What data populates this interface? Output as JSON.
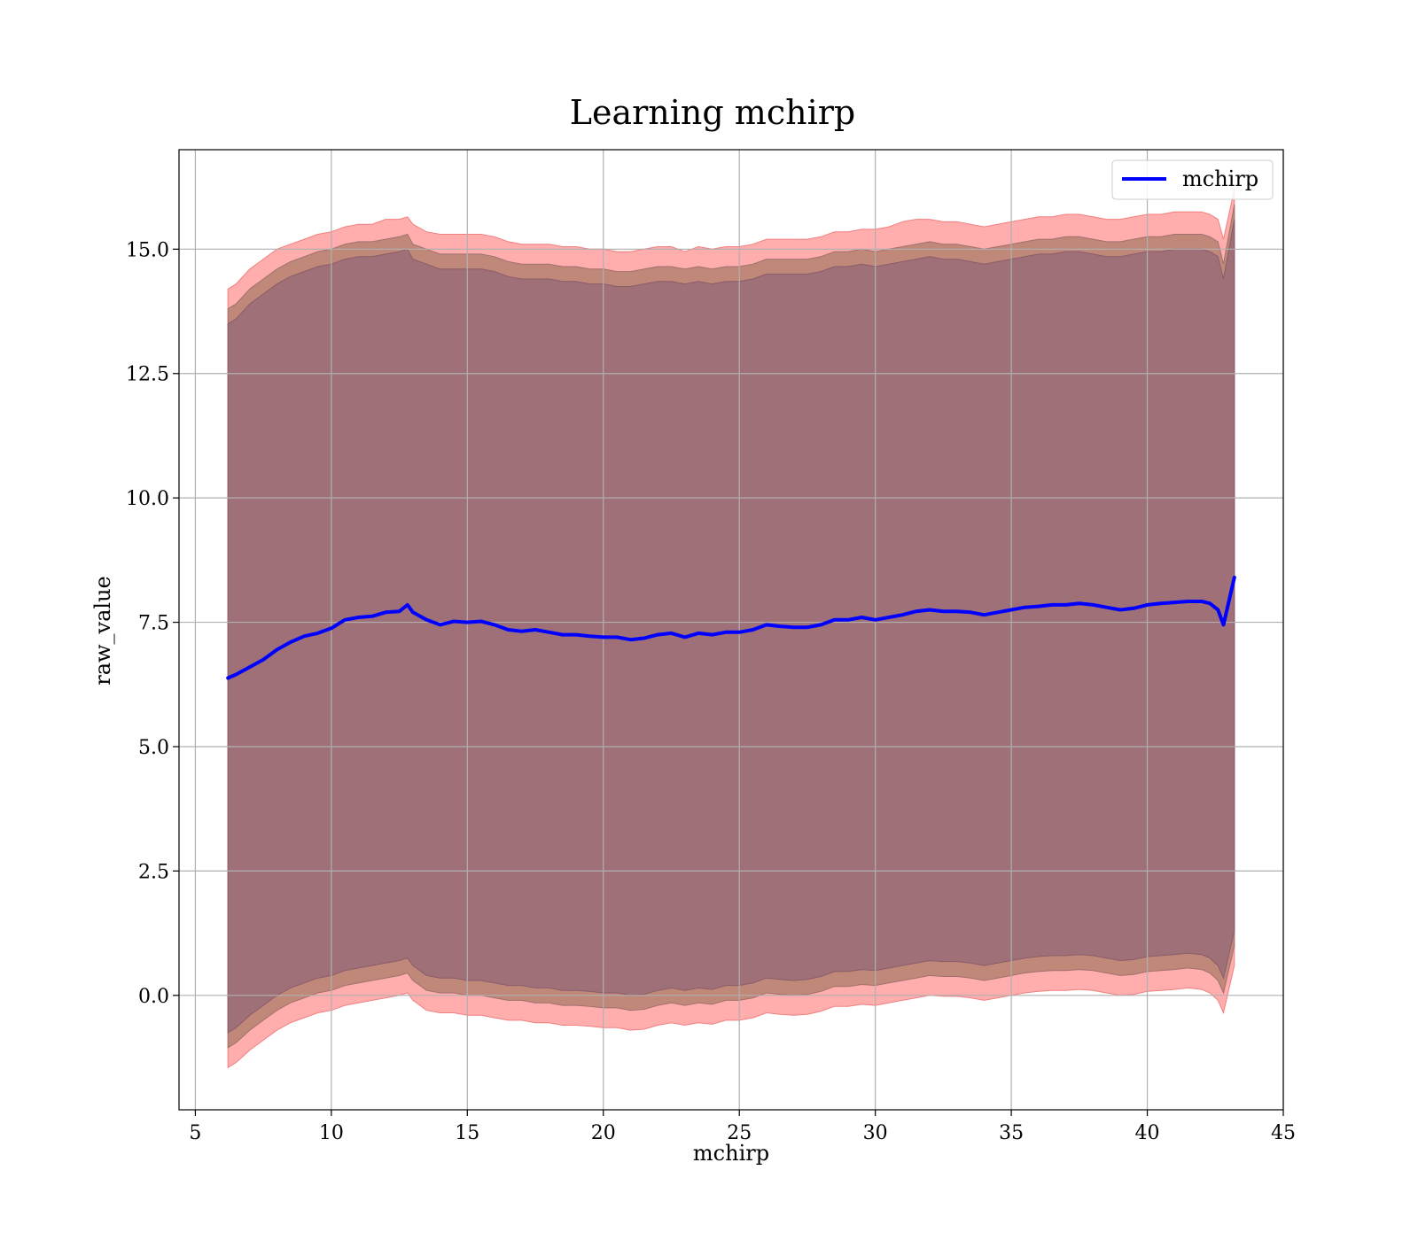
{
  "chart_data": {
    "type": "line",
    "title": "Learning mchirp",
    "xlabel": "mchirp",
    "ylabel": "raw_value",
    "xlim": [
      4.4,
      45
    ],
    "ylim": [
      -2.3,
      17.0
    ],
    "xticks": [
      5,
      10,
      15,
      20,
      25,
      30,
      35,
      40,
      45
    ],
    "xtick_labels": [
      "5",
      "10",
      "15",
      "20",
      "25",
      "30",
      "35",
      "40",
      "45"
    ],
    "yticks": [
      0.0,
      2.5,
      5.0,
      7.5,
      10.0,
      12.5,
      15.0
    ],
    "ytick_labels": [
      "0.0",
      "2.5",
      "5.0",
      "7.5",
      "10.0",
      "12.5",
      "15.0"
    ],
    "grid": true,
    "legend": {
      "position": "top-right",
      "entries": [
        "mchirp"
      ]
    },
    "colors": {
      "line": "#0000ff",
      "band_outer": "#ff9999",
      "band_middle": "#c08878",
      "band_inner": "#a07078",
      "grid": "#b0b0b0"
    },
    "series": [
      {
        "name": "mchirp",
        "x": [
          6.2,
          6.5,
          7.0,
          7.5,
          8.0,
          8.5,
          9.0,
          9.5,
          10.0,
          10.5,
          11.0,
          11.5,
          12.0,
          12.5,
          12.8,
          13.0,
          13.5,
          14.0,
          14.5,
          15.0,
          15.5,
          16.0,
          16.5,
          17.0,
          17.5,
          18.0,
          18.5,
          19.0,
          19.5,
          20.0,
          20.5,
          21.0,
          21.5,
          22.0,
          22.5,
          23.0,
          23.5,
          24.0,
          24.5,
          25.0,
          25.5,
          26.0,
          26.5,
          27.0,
          27.5,
          28.0,
          28.5,
          29.0,
          29.5,
          30.0,
          30.5,
          31.0,
          31.5,
          32.0,
          32.5,
          33.0,
          33.5,
          34.0,
          34.5,
          35.0,
          35.5,
          36.0,
          36.5,
          37.0,
          37.5,
          38.0,
          38.5,
          39.0,
          39.5,
          40.0,
          40.5,
          41.0,
          41.5,
          42.0,
          42.3,
          42.6,
          42.8,
          43.2
        ],
        "y": [
          6.38,
          6.45,
          6.6,
          6.75,
          6.95,
          7.1,
          7.22,
          7.28,
          7.38,
          7.55,
          7.6,
          7.62,
          7.7,
          7.72,
          7.85,
          7.7,
          7.55,
          7.45,
          7.52,
          7.5,
          7.52,
          7.45,
          7.35,
          7.32,
          7.35,
          7.3,
          7.25,
          7.25,
          7.22,
          7.2,
          7.2,
          7.15,
          7.18,
          7.25,
          7.28,
          7.2,
          7.28,
          7.25,
          7.3,
          7.3,
          7.35,
          7.45,
          7.42,
          7.4,
          7.4,
          7.45,
          7.55,
          7.55,
          7.6,
          7.55,
          7.6,
          7.65,
          7.72,
          7.75,
          7.72,
          7.72,
          7.7,
          7.65,
          7.7,
          7.75,
          7.8,
          7.82,
          7.85,
          7.85,
          7.88,
          7.85,
          7.8,
          7.75,
          7.78,
          7.85,
          7.88,
          7.9,
          7.92,
          7.92,
          7.88,
          7.75,
          7.45,
          8.4
        ],
        "band_outer_upper": [
          14.2,
          14.3,
          14.6,
          14.8,
          15.0,
          15.1,
          15.2,
          15.3,
          15.35,
          15.45,
          15.5,
          15.5,
          15.6,
          15.6,
          15.65,
          15.5,
          15.35,
          15.3,
          15.3,
          15.3,
          15.3,
          15.25,
          15.15,
          15.1,
          15.1,
          15.1,
          15.05,
          15.05,
          15.0,
          15.0,
          14.95,
          14.95,
          15.0,
          15.05,
          15.05,
          14.95,
          15.05,
          15.0,
          15.05,
          15.05,
          15.1,
          15.2,
          15.2,
          15.2,
          15.2,
          15.25,
          15.35,
          15.35,
          15.4,
          15.4,
          15.45,
          15.55,
          15.6,
          15.6,
          15.55,
          15.55,
          15.5,
          15.45,
          15.5,
          15.55,
          15.6,
          15.65,
          15.65,
          15.7,
          15.7,
          15.65,
          15.6,
          15.6,
          15.65,
          15.7,
          15.7,
          15.75,
          15.75,
          15.75,
          15.7,
          15.6,
          15.2,
          16.2
        ],
        "band_outer_lower": [
          -1.45,
          -1.35,
          -1.1,
          -0.9,
          -0.7,
          -0.55,
          -0.45,
          -0.35,
          -0.3,
          -0.2,
          -0.15,
          -0.1,
          -0.05,
          0.0,
          0.05,
          -0.1,
          -0.3,
          -0.35,
          -0.35,
          -0.4,
          -0.4,
          -0.45,
          -0.5,
          -0.5,
          -0.55,
          -0.55,
          -0.6,
          -0.6,
          -0.62,
          -0.65,
          -0.65,
          -0.7,
          -0.68,
          -0.6,
          -0.55,
          -0.6,
          -0.55,
          -0.58,
          -0.5,
          -0.5,
          -0.45,
          -0.35,
          -0.38,
          -0.4,
          -0.38,
          -0.32,
          -0.22,
          -0.22,
          -0.18,
          -0.2,
          -0.15,
          -0.1,
          -0.05,
          0.0,
          -0.02,
          -0.02,
          -0.05,
          -0.1,
          -0.05,
          0.0,
          0.05,
          0.08,
          0.1,
          0.1,
          0.12,
          0.1,
          0.05,
          0.0,
          0.02,
          0.08,
          0.1,
          0.12,
          0.15,
          0.12,
          0.05,
          -0.1,
          -0.35,
          0.6
        ],
        "band_middle_upper": [
          13.8,
          13.9,
          14.2,
          14.4,
          14.6,
          14.75,
          14.85,
          14.95,
          15.0,
          15.1,
          15.15,
          15.15,
          15.2,
          15.25,
          15.3,
          15.1,
          15.0,
          14.9,
          14.9,
          14.9,
          14.9,
          14.85,
          14.75,
          14.7,
          14.7,
          14.7,
          14.65,
          14.65,
          14.6,
          14.6,
          14.55,
          14.55,
          14.6,
          14.65,
          14.65,
          14.6,
          14.65,
          14.6,
          14.65,
          14.65,
          14.7,
          14.8,
          14.8,
          14.8,
          14.8,
          14.85,
          14.95,
          14.95,
          15.0,
          14.95,
          15.0,
          15.05,
          15.1,
          15.15,
          15.1,
          15.1,
          15.05,
          15.0,
          15.05,
          15.1,
          15.15,
          15.2,
          15.2,
          15.25,
          15.25,
          15.2,
          15.15,
          15.15,
          15.2,
          15.25,
          15.25,
          15.3,
          15.3,
          15.3,
          15.25,
          15.15,
          14.7,
          15.9
        ],
        "band_middle_lower": [
          -1.05,
          -0.95,
          -0.7,
          -0.5,
          -0.3,
          -0.15,
          -0.05,
          0.05,
          0.1,
          0.2,
          0.25,
          0.3,
          0.35,
          0.4,
          0.45,
          0.3,
          0.1,
          0.05,
          0.05,
          0.0,
          0.0,
          -0.05,
          -0.1,
          -0.1,
          -0.15,
          -0.15,
          -0.2,
          -0.2,
          -0.22,
          -0.25,
          -0.25,
          -0.3,
          -0.28,
          -0.2,
          -0.15,
          -0.2,
          -0.15,
          -0.18,
          -0.1,
          -0.1,
          -0.05,
          0.05,
          0.02,
          0.0,
          0.02,
          0.08,
          0.18,
          0.18,
          0.22,
          0.2,
          0.25,
          0.3,
          0.35,
          0.4,
          0.38,
          0.38,
          0.35,
          0.3,
          0.35,
          0.4,
          0.45,
          0.48,
          0.5,
          0.5,
          0.52,
          0.5,
          0.45,
          0.4,
          0.42,
          0.48,
          0.5,
          0.52,
          0.55,
          0.52,
          0.45,
          0.3,
          0.05,
          1.0
        ],
        "band_inner_upper": [
          13.5,
          13.6,
          13.9,
          14.1,
          14.3,
          14.45,
          14.55,
          14.65,
          14.7,
          14.8,
          14.85,
          14.85,
          14.9,
          14.95,
          15.0,
          14.8,
          14.7,
          14.6,
          14.6,
          14.6,
          14.6,
          14.55,
          14.45,
          14.4,
          14.4,
          14.4,
          14.35,
          14.35,
          14.3,
          14.3,
          14.25,
          14.25,
          14.3,
          14.35,
          14.35,
          14.3,
          14.35,
          14.3,
          14.35,
          14.35,
          14.4,
          14.5,
          14.5,
          14.5,
          14.5,
          14.55,
          14.65,
          14.65,
          14.7,
          14.65,
          14.7,
          14.75,
          14.8,
          14.85,
          14.8,
          14.8,
          14.75,
          14.7,
          14.75,
          14.8,
          14.85,
          14.9,
          14.9,
          14.95,
          14.95,
          14.9,
          14.85,
          14.85,
          14.9,
          14.95,
          14.95,
          15.0,
          15.0,
          15.0,
          14.95,
          14.85,
          14.4,
          15.6
        ],
        "band_inner_lower": [
          -0.75,
          -0.65,
          -0.4,
          -0.2,
          0.0,
          0.15,
          0.25,
          0.35,
          0.4,
          0.5,
          0.55,
          0.6,
          0.65,
          0.7,
          0.75,
          0.6,
          0.4,
          0.35,
          0.35,
          0.3,
          0.3,
          0.25,
          0.2,
          0.2,
          0.15,
          0.15,
          0.1,
          0.1,
          0.08,
          0.05,
          0.05,
          0.0,
          0.02,
          0.1,
          0.15,
          0.1,
          0.15,
          0.12,
          0.2,
          0.2,
          0.25,
          0.35,
          0.32,
          0.3,
          0.32,
          0.38,
          0.48,
          0.48,
          0.52,
          0.5,
          0.55,
          0.6,
          0.65,
          0.7,
          0.68,
          0.68,
          0.65,
          0.6,
          0.65,
          0.7,
          0.75,
          0.78,
          0.8,
          0.8,
          0.82,
          0.8,
          0.75,
          0.7,
          0.72,
          0.78,
          0.8,
          0.82,
          0.85,
          0.82,
          0.75,
          0.6,
          0.35,
          1.3
        ]
      }
    ]
  }
}
